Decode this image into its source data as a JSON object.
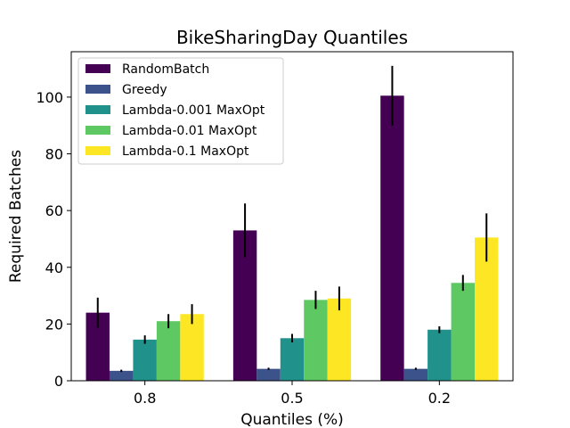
{
  "chart_data": {
    "type": "bar",
    "title": "BikeSharingDay Quantiles",
    "xlabel": "Quantiles (%)",
    "ylabel": "Required Batches",
    "categories": [
      "0.8",
      "0.5",
      "0.2"
    ],
    "ylim": [
      0,
      116
    ],
    "yticks": [
      0,
      20,
      40,
      60,
      80,
      100
    ],
    "grid": false,
    "legend_position": "top-left",
    "series": [
      {
        "name": "RandomBatch",
        "color": "#440154",
        "values": [
          24,
          53,
          100.5
        ],
        "errors": [
          5.3,
          9.5,
          10.5
        ]
      },
      {
        "name": "Greedy",
        "color": "#3b528b",
        "values": [
          3.5,
          4.2,
          4.2
        ],
        "errors": [
          0.4,
          0.4,
          0.4
        ]
      },
      {
        "name": "Lambda-0.001 MaxOpt",
        "color": "#21918c",
        "values": [
          14.5,
          15,
          18
        ],
        "errors": [
          1.5,
          1.5,
          1.2
        ]
      },
      {
        "name": "Lambda-0.01 MaxOpt",
        "color": "#5ec962",
        "values": [
          21,
          28.5,
          34.5
        ],
        "errors": [
          2.5,
          3.2,
          2.8
        ]
      },
      {
        "name": "Lambda-0.1 MaxOpt",
        "color": "#fde725",
        "values": [
          23.5,
          29,
          50.5
        ],
        "errors": [
          3.5,
          4.2,
          8.5
        ]
      }
    ]
  }
}
